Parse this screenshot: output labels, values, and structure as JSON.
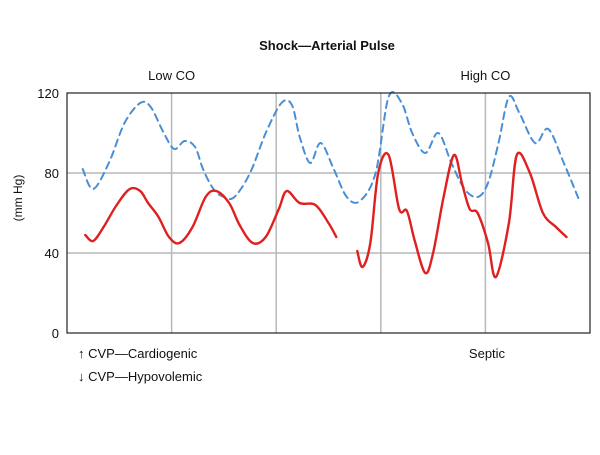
{
  "chart_data": {
    "type": "line",
    "title": "Shock—Arterial Pulse",
    "ylabel": "(mm Hg)",
    "xlabel": "",
    "ylim": [
      0,
      120
    ],
    "yticks": [
      0,
      40,
      80,
      120
    ],
    "grid": true,
    "x_range": [
      0,
      10
    ],
    "vertical_gridlines": [
      2,
      4,
      6,
      8,
      10
    ],
    "regions": [
      {
        "label": "Low CO",
        "label_x": 2.0,
        "x_range": [
          0,
          5.1
        ]
      },
      {
        "label": "High CO",
        "label_x": 8.0,
        "x_range": [
          5.6,
          9.8
        ]
      }
    ],
    "annotations": [
      {
        "text": "↑ CVP—Cardiogenic"
      },
      {
        "text": "↓ CVP—Hypovolemic"
      },
      {
        "text": "Septic"
      }
    ],
    "series": [
      {
        "color": "#4a8fd6",
        "style": "dashed",
        "x": [
          0.3,
          0.5,
          0.8,
          1.1,
          1.4,
          1.6,
          1.85,
          2.05,
          2.25,
          2.45,
          2.6,
          2.8,
          3.0,
          3.2,
          3.5,
          3.8,
          4.1,
          4.3,
          4.45,
          4.65,
          4.85,
          5.1,
          5.35,
          5.6,
          5.9,
          6.15,
          6.4,
          6.6,
          6.85,
          7.1,
          7.35,
          7.6,
          7.85,
          8.05,
          8.25,
          8.45,
          8.65,
          8.95,
          9.2,
          9.5,
          9.8
        ],
        "y": [
          82,
          72,
          85,
          105,
          115,
          113,
          100,
          92,
          96,
          93,
          82,
          72,
          68,
          68,
          80,
          100,
          115,
          114,
          98,
          85,
          95,
          82,
          68,
          66,
          80,
          118,
          115,
          100,
          90,
          100,
          85,
          72,
          68,
          75,
          95,
          118,
          110,
          95,
          102,
          85,
          66
        ]
      },
      {
        "color": "#e02020",
        "style": "solid",
        "x": [
          0.35,
          0.5,
          0.7,
          0.95,
          1.2,
          1.4,
          1.55,
          1.75,
          1.95,
          2.15,
          2.4,
          2.65,
          2.85,
          3.1,
          3.3,
          3.55,
          3.8,
          4.05,
          4.2,
          4.45,
          4.75,
          5.0,
          5.15
        ],
        "y": [
          49,
          46,
          53,
          64,
          72,
          71,
          65,
          58,
          48,
          45,
          53,
          68,
          71,
          65,
          54,
          45,
          48,
          62,
          71,
          65,
          64,
          55,
          48
        ],
        "segment": 1
      },
      {
        "color": "#e02020",
        "style": "solid",
        "x": [
          5.55,
          5.65,
          5.8,
          5.95,
          6.15,
          6.35,
          6.5,
          6.65,
          6.85,
          7.0,
          7.2,
          7.4,
          7.55,
          7.7,
          7.85,
          8.05,
          8.2,
          8.45,
          8.6,
          8.85,
          9.1,
          9.35,
          9.55
        ],
        "y": [
          41,
          33,
          45,
          80,
          89,
          62,
          61,
          46,
          30,
          40,
          68,
          89,
          75,
          62,
          60,
          45,
          28,
          55,
          89,
          80,
          60,
          53,
          48
        ],
        "segment": 2
      }
    ]
  }
}
